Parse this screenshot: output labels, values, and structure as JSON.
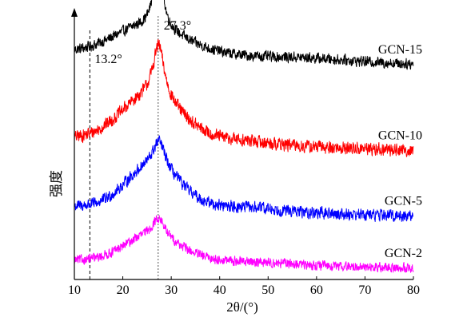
{
  "chart_data": {
    "type": "line",
    "xlabel": "2θ/(°)",
    "ylabel": "强度",
    "xlim": [
      10,
      80
    ],
    "xticks": [
      10,
      20,
      30,
      40,
      50,
      60,
      70,
      80
    ],
    "x_tick_labels": [
      "10",
      "20",
      "30",
      "40",
      "50",
      "60",
      "70",
      "80"
    ],
    "y_ticks_shown": false,
    "grid": false,
    "legend": "none",
    "reference_lines": [
      {
        "x": 13.2,
        "label": "13.2°"
      },
      {
        "x": 27.3,
        "label": "27.3°"
      }
    ],
    "series": [
      {
        "name": "GCN-15",
        "color": "#000000",
        "baseline": 0.84,
        "noise": 0.018,
        "shoulder": {
          "center": 24.5,
          "width": 6,
          "height": 0.06
        },
        "peak": {
          "center": 27.3,
          "height": 0.43,
          "width": 0.75
        },
        "hump": {
          "center": 27.3,
          "width": 9,
          "height": 0.05
        },
        "broad": {
          "center": 57,
          "width": 9,
          "height": 0.01
        },
        "tail_slope": -0.0006
      },
      {
        "name": "GCN-10",
        "color": "#ff0000",
        "baseline": 0.52,
        "noise": 0.022,
        "shoulder": {
          "center": 24,
          "width": 6,
          "height": 0.08
        },
        "peak": {
          "center": 27.4,
          "height": 0.2,
          "width": 1.4
        },
        "hump": {
          "center": 27.3,
          "width": 6,
          "height": 0.09
        },
        "broad": {
          "center": 43,
          "width": 7,
          "height": 0.015
        },
        "tail_slope": -0.0006
      },
      {
        "name": "GCN-5",
        "color": "#0000ff",
        "baseline": 0.27,
        "noise": 0.02,
        "shoulder": {
          "center": 24.5,
          "width": 5,
          "height": 0.06
        },
        "peak": {
          "center": 27.5,
          "height": 0.1,
          "width": 1.5
        },
        "hump": {
          "center": 27.3,
          "width": 5.5,
          "height": 0.1
        },
        "broad": {
          "center": 45,
          "width": 7,
          "height": 0.015
        },
        "tail_slope": -0.0005
      },
      {
        "name": "GCN-2",
        "color": "#ff00ff",
        "baseline": 0.07,
        "noise": 0.016,
        "shoulder": {
          "center": 24.5,
          "width": 5,
          "height": 0.04
        },
        "peak": {
          "center": 27.4,
          "height": 0.07,
          "width": 1.5
        },
        "hump": {
          "center": 27.3,
          "width": 6,
          "height": 0.06
        },
        "broad": {
          "center": 46,
          "width": 8,
          "height": 0.01
        },
        "tail_slope": -0.0004
      }
    ]
  }
}
